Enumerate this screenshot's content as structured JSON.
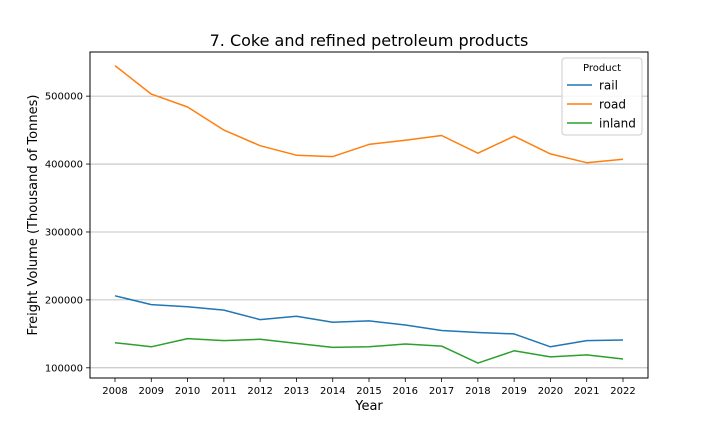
{
  "chart_data": {
    "type": "line",
    "title": "7. Coke and refined petroleum products",
    "xlabel": "Year",
    "ylabel": "Freight Volume (Thousand of Tonnes)",
    "x": [
      2008,
      2009,
      2010,
      2011,
      2012,
      2013,
      2014,
      2015,
      2016,
      2017,
      2018,
      2019,
      2020,
      2021,
      2022
    ],
    "ylim": [
      85000,
      565000
    ],
    "yticks": [
      100000,
      200000,
      300000,
      400000,
      500000
    ],
    "ytick_labels": [
      "100000",
      "200000",
      "300000",
      "400000",
      "500000"
    ],
    "grid": "y",
    "legend": {
      "title": "Product",
      "position": "top-right"
    },
    "series": [
      {
        "name": "rail",
        "color": "#1f77b4",
        "values": [
          206000,
          193000,
          190000,
          185000,
          171000,
          176000,
          167000,
          169000,
          163000,
          155000,
          152000,
          150000,
          131000,
          140000,
          141000
        ]
      },
      {
        "name": "road",
        "color": "#ff7f0e",
        "values": [
          545000,
          503000,
          484000,
          450000,
          427000,
          413000,
          411000,
          429000,
          435000,
          442000,
          416000,
          441000,
          415000,
          402000,
          407000
        ]
      },
      {
        "name": "inland",
        "color": "#2ca02c",
        "values": [
          137000,
          131000,
          143000,
          140000,
          142000,
          136000,
          130000,
          131000,
          135000,
          132000,
          107000,
          125000,
          116000,
          119000,
          113000
        ]
      }
    ]
  }
}
